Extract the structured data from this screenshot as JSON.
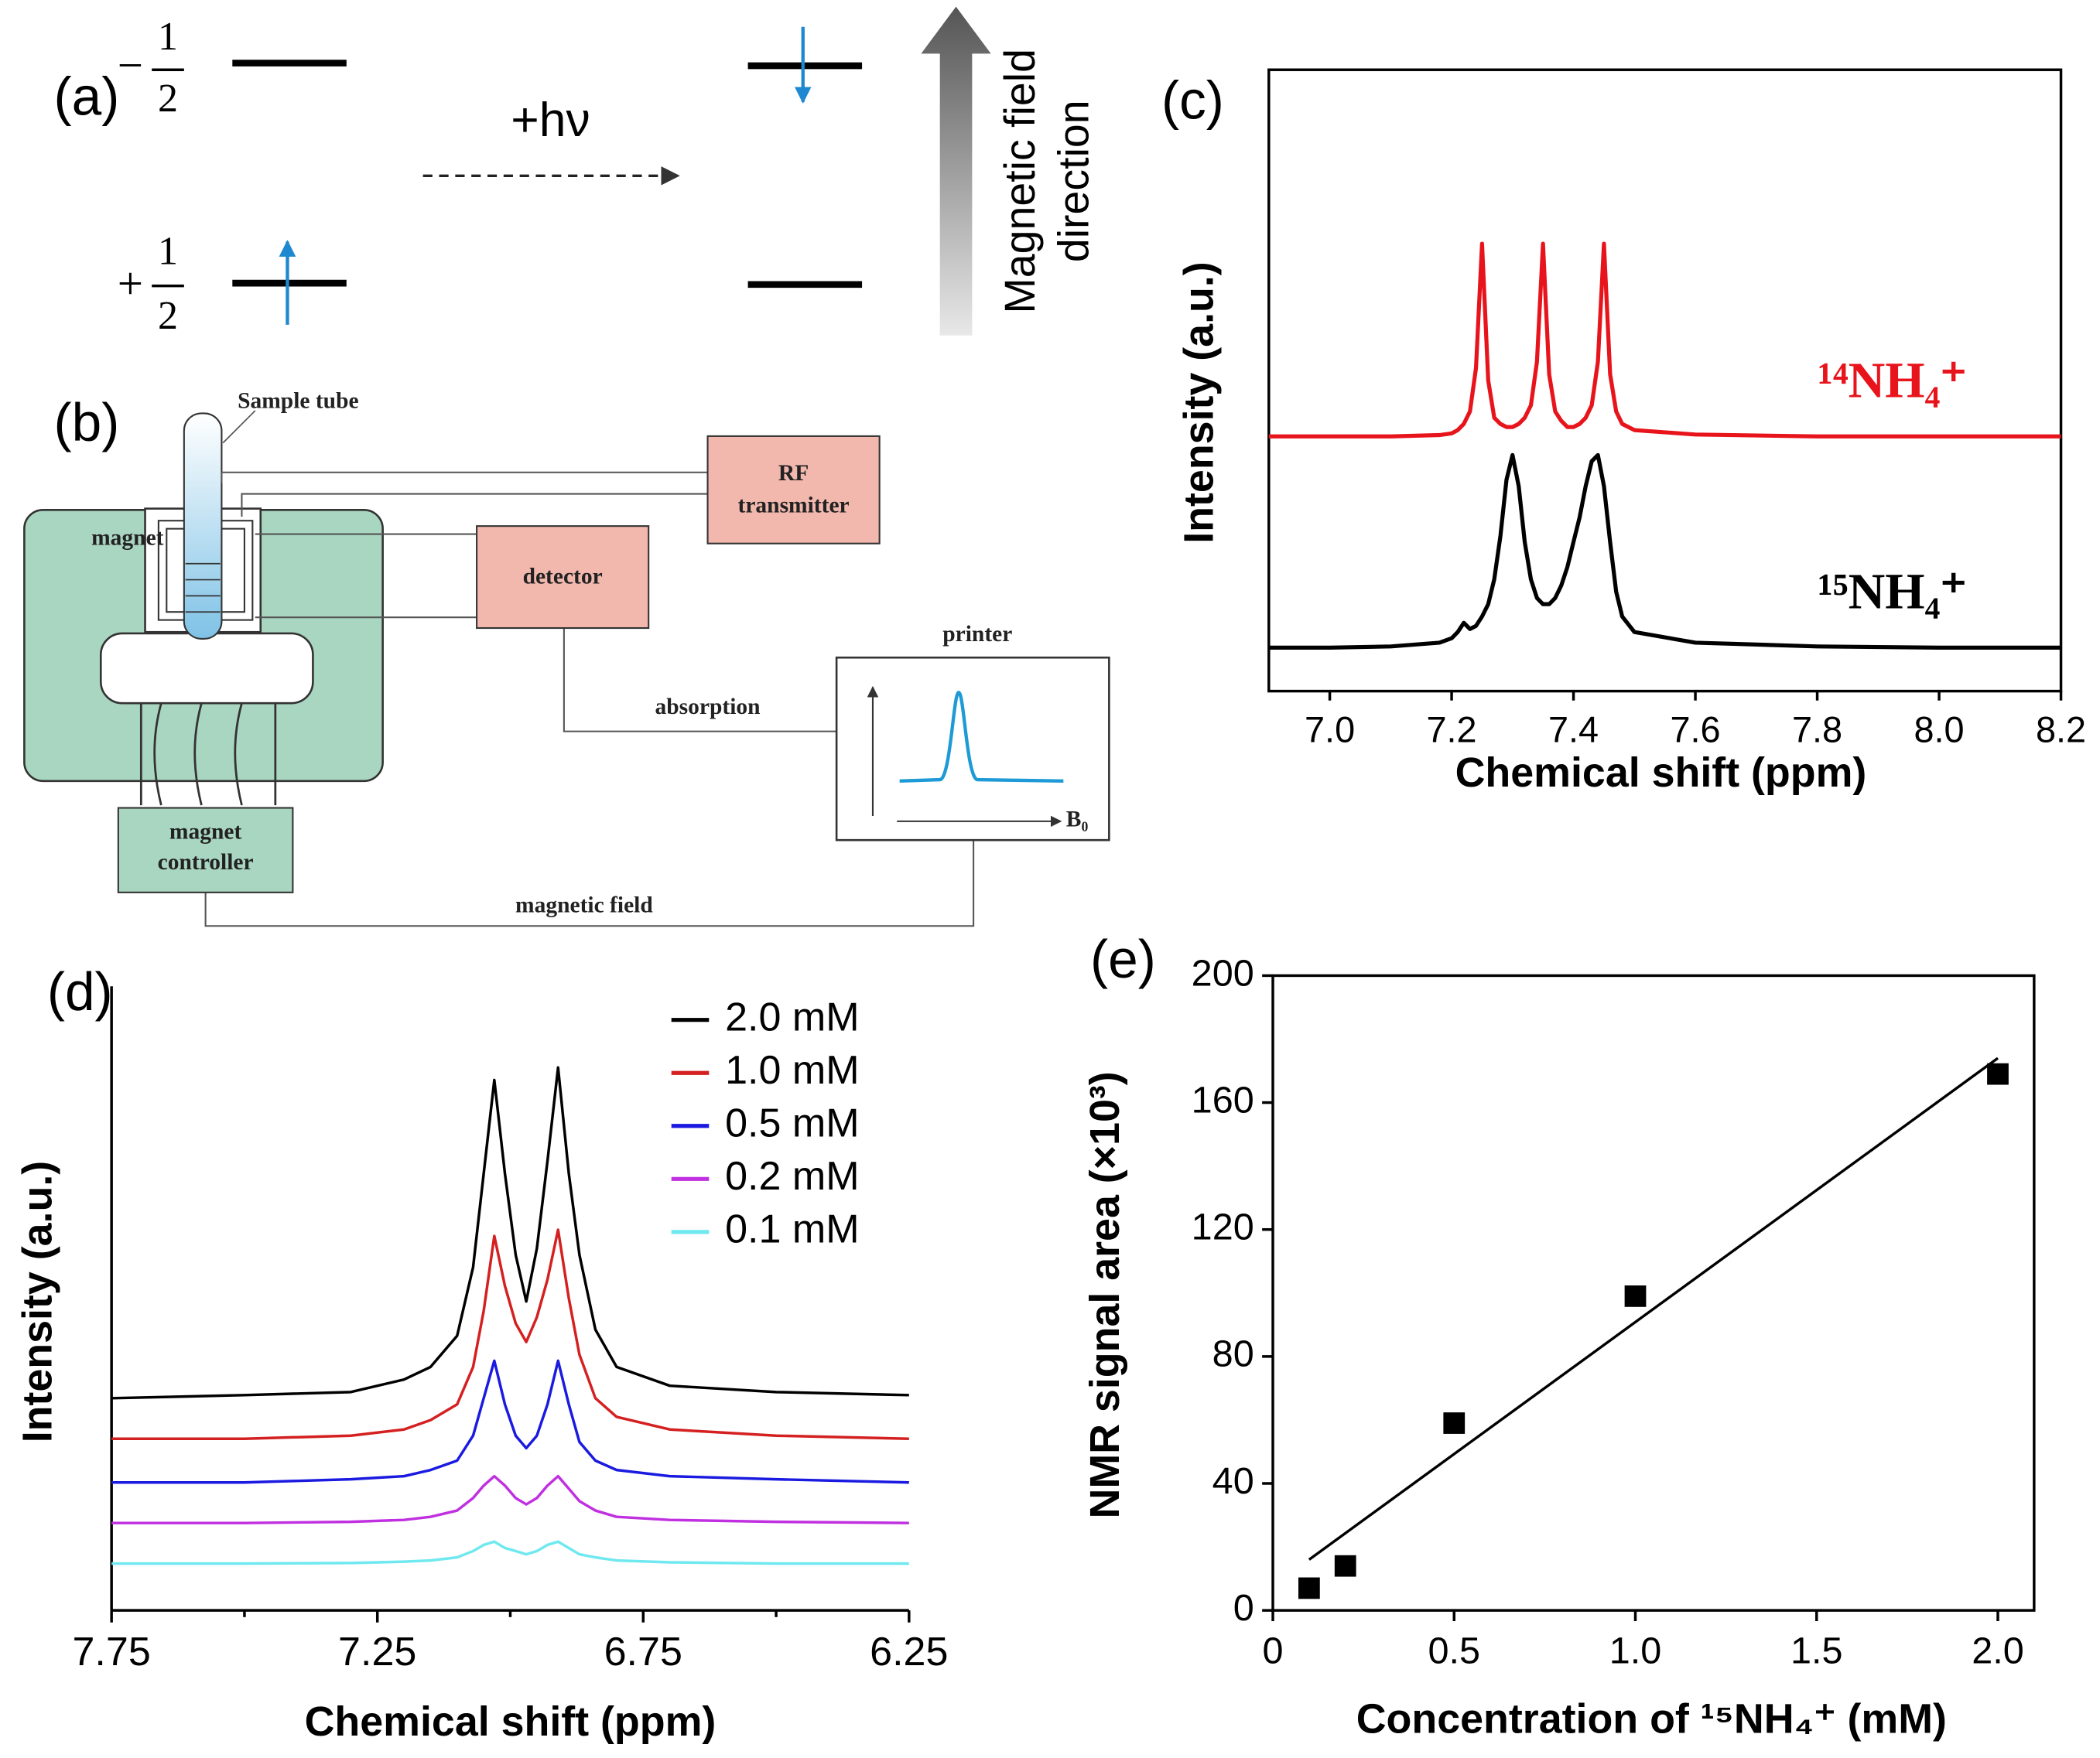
{
  "panel_a": {
    "label": "(a)",
    "spin_down": {
      "sign": "−",
      "numerator": "1",
      "denominator": "2"
    },
    "spin_up": {
      "sign": "+",
      "numerator": "1",
      "denominator": "2"
    },
    "energy": "+hν",
    "field_label": [
      "Magnetic field",
      "direction"
    ]
  },
  "panel_b": {
    "label": "(b)",
    "sample_tube": "Sample tube",
    "magnet": "magnet",
    "rf_transmitter": [
      "RF",
      "transmitter"
    ],
    "detector": "detector",
    "printer": "printer",
    "absorption": "absorption",
    "b0": "B₀",
    "magnet_controller": [
      "magnet",
      "controller"
    ],
    "magnetic_field": "magnetic field"
  },
  "chart_data": [
    {
      "type": "line",
      "panel": "(c)",
      "x_label": "Chemical shift (ppm)",
      "y_label": "Intensity (a.u.)",
      "legend": "direct",
      "x": [
        6.9,
        7.0,
        7.1,
        7.18,
        7.2,
        7.21,
        7.22,
        7.23,
        7.24,
        7.25,
        7.26,
        7.27,
        7.28,
        7.29,
        7.3,
        7.31,
        7.32,
        7.33,
        7.34,
        7.35,
        7.36,
        7.37,
        7.38,
        7.39,
        7.4,
        7.41,
        7.42,
        7.43,
        7.44,
        7.45,
        7.46,
        7.47,
        7.48,
        7.5,
        7.6,
        7.8,
        8.0,
        8.2
      ],
      "series": [
        {
          "name": "¹⁴NH₄⁺",
          "color": "#e8141c",
          "values": [
            41,
            41,
            41,
            41.2,
            41.5,
            42,
            43,
            45,
            52,
            72,
            50,
            44,
            43,
            42.5,
            42.5,
            43,
            44,
            46,
            53,
            72,
            51,
            45,
            43.5,
            42.5,
            42.5,
            43,
            44,
            46,
            53,
            72,
            51,
            45,
            43,
            42,
            41.3,
            41,
            41,
            41
          ]
        },
        {
          "name": "¹⁵NH₄⁺",
          "color": "#000000",
          "values": [
            7,
            7,
            7.2,
            7.8,
            8.5,
            9.5,
            11,
            10,
            10.5,
            12,
            14,
            18,
            25,
            34,
            38,
            33,
            24,
            18,
            15,
            14,
            14,
            15,
            17,
            20,
            24,
            28,
            33,
            37,
            38,
            33,
            24,
            16,
            12,
            9.5,
            7.8,
            7.2,
            7,
            7
          ]
        }
      ],
      "xlim": [
        6.9,
        8.2
      ],
      "ylim": [
        0,
        100
      ],
      "xticks": [
        {
          "value": 7,
          "label": "7.0"
        },
        7.2,
        7.4,
        7.6,
        7.8,
        {
          "value": 8,
          "label": "8.0"
        },
        8.2
      ]
    },
    {
      "type": "line",
      "panel": "(d)",
      "x_label": "Chemical shift (ppm)",
      "y_label": "Intensity (a.u.)",
      "legend": "upper right",
      "x": [
        7.75,
        7.5,
        7.3,
        7.2,
        7.15,
        7.1,
        7.07,
        7.05,
        7.03,
        7.01,
        6.99,
        6.97,
        6.95,
        6.93,
        6.91,
        6.89,
        6.87,
        6.84,
        6.8,
        6.7,
        6.5,
        6.25
      ],
      "series": [
        {
          "name": "2.0 mM",
          "color": "#000000",
          "values": [
            34,
            34.5,
            35,
            37,
            39,
            44,
            55,
            70,
            85,
            70,
            57,
            49.5,
            58,
            72,
            87,
            70,
            57,
            45,
            39,
            36,
            35,
            34.5
          ]
        },
        {
          "name": "1.0 mM",
          "color": "#d42020",
          "values": [
            27.5,
            27.5,
            28,
            29,
            30.5,
            33,
            39,
            48,
            60,
            52,
            46,
            43,
            47,
            53,
            61,
            50,
            41,
            34,
            31,
            29,
            28,
            27.5
          ]
        },
        {
          "name": "0.5 mM",
          "color": "#1a1ae0",
          "values": [
            20.5,
            20.5,
            21,
            21.5,
            22.5,
            24,
            28,
            34,
            40,
            33,
            28,
            26,
            28,
            33,
            40,
            33,
            27,
            24,
            22.5,
            21.5,
            21,
            20.5
          ]
        },
        {
          "name": "0.2 mM",
          "color": "#c030e0",
          "values": [
            14,
            14,
            14.2,
            14.5,
            15,
            16,
            18,
            20,
            21.5,
            20,
            18,
            17,
            18,
            20,
            21.5,
            19.5,
            17.5,
            16,
            15,
            14.5,
            14.2,
            14
          ]
        },
        {
          "name": "0.1 mM",
          "color": "#70e8f0",
          "values": [
            7.5,
            7.5,
            7.6,
            7.8,
            8,
            8.5,
            9.5,
            10.5,
            11,
            10,
            9.5,
            9,
            9.5,
            10.5,
            11,
            10,
            9,
            8.5,
            8,
            7.7,
            7.5,
            7.5
          ]
        }
      ],
      "xlim": [
        7.75,
        6.25
      ],
      "ylim": [
        0,
        100
      ],
      "xticks": [
        7.75,
        7.25,
        6.75,
        6.25
      ],
      "xminor_ticks": [
        7.5,
        7,
        6.5
      ]
    },
    {
      "type": "scatter",
      "panel": "(e)",
      "x_label": "Concentration of ¹⁵NH₄⁺ (mM)",
      "y_label": "NMR signal area (×10³)",
      "x": [
        0.1,
        0.2,
        0.5,
        1.0,
        2.0
      ],
      "values": [
        7,
        14,
        59,
        99,
        169
      ],
      "color": "#000000",
      "fit_line": {
        "x": [
          0.1,
          2.0
        ],
        "values": [
          16,
          174
        ]
      },
      "xlim": [
        0,
        2.1
      ],
      "ylim": [
        0,
        200
      ],
      "xticks": [
        0,
        0.5,
        {
          "value": 1,
          "label": "1.0"
        },
        1.5,
        {
          "value": 2,
          "label": "2.0"
        }
      ],
      "yticks": [
        0,
        40,
        80,
        120,
        160,
        200
      ]
    }
  ]
}
